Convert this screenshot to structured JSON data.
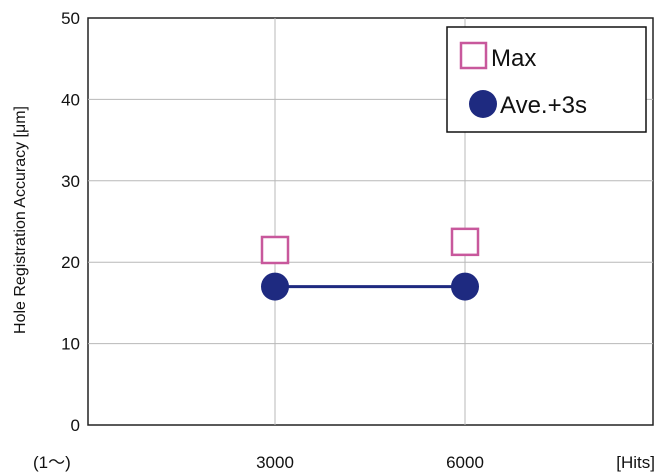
{
  "chart_data": {
    "type": "line",
    "ylabel": "Hole Registration Accuracy [μm]",
    "x_categories": [
      "3000",
      "6000"
    ],
    "x_axis_start_label": "(1～)",
    "x_unit_label": "[Hits]",
    "ylim": [
      0,
      50
    ],
    "yticks": [
      "0",
      "10",
      "20",
      "30",
      "40",
      "50"
    ],
    "grid": true,
    "legend_position": "top-right",
    "series": [
      {
        "name": "Max",
        "marker": "square-open",
        "color": "#c8589c",
        "values": [
          21.5,
          22.5
        ],
        "line": false
      },
      {
        "name": "Ave.+3s",
        "marker": "circle-filled",
        "color": "#1e2a80",
        "values": [
          17,
          17
        ],
        "line": true
      }
    ]
  }
}
